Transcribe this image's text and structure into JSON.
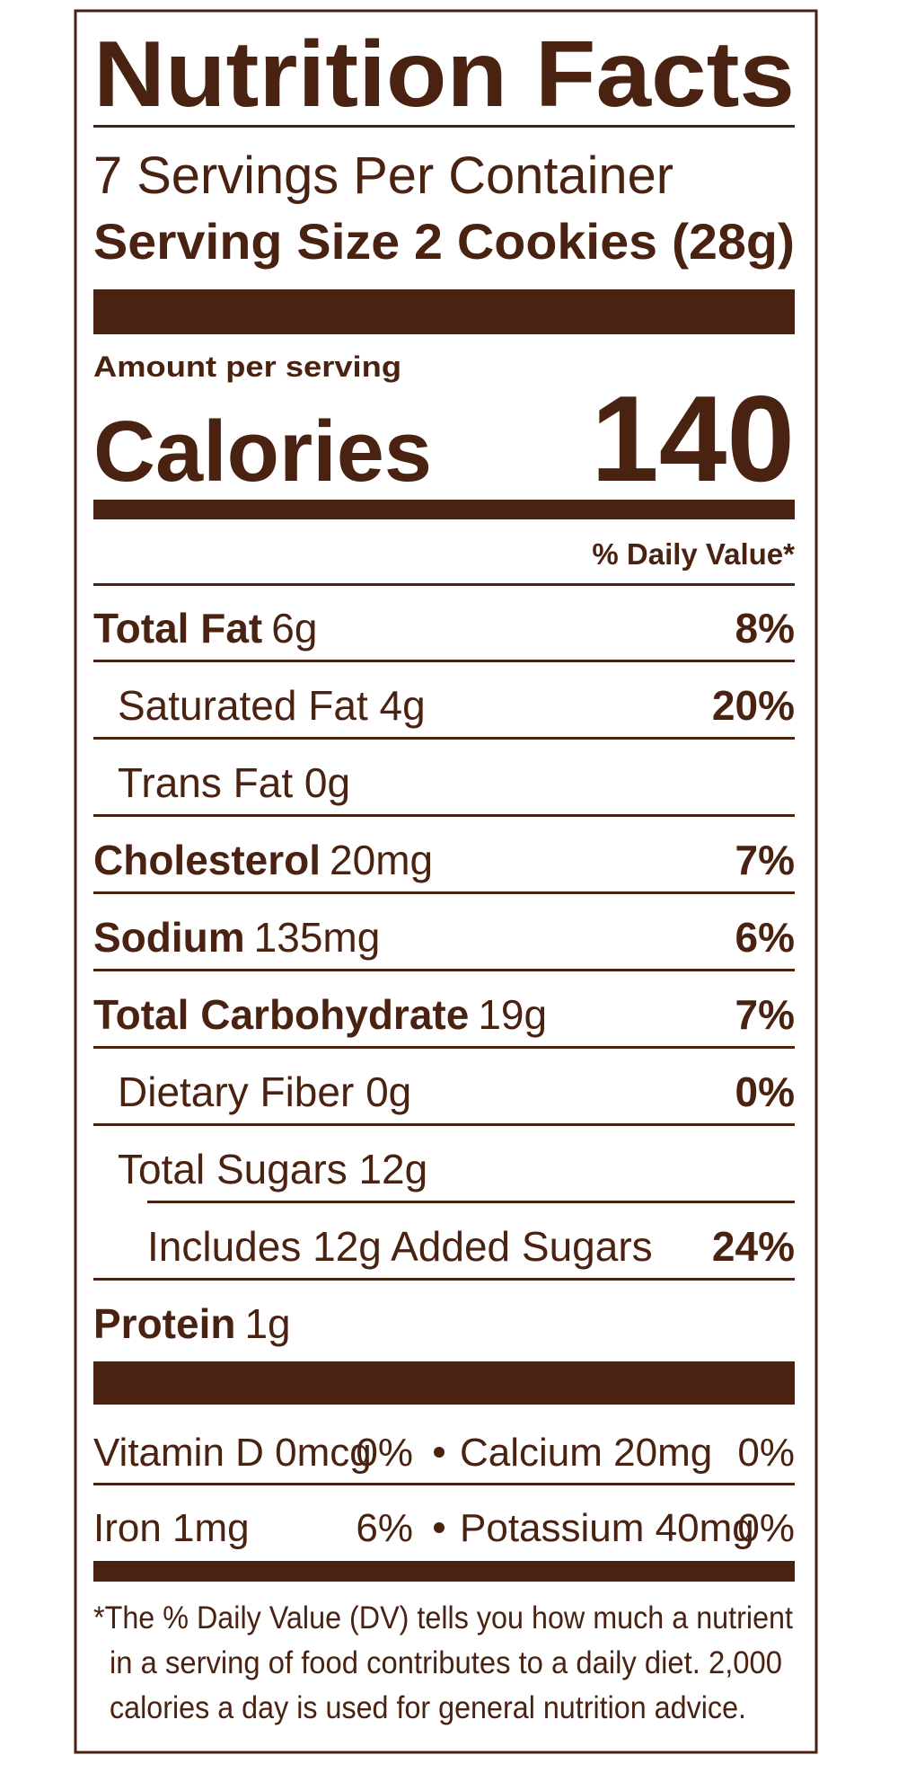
{
  "title": "Nutrition Facts",
  "servings": "7 Servings Per Container",
  "serving_size": "Serving Size 2 Cookies (28g)",
  "amount_per_serving": "Amount per serving",
  "calories": {
    "label": "Calories",
    "value": "140"
  },
  "dv_header": "% Daily Value*",
  "rows": [
    {
      "name": "Total Fat",
      "amount": "6g",
      "dv": "8%"
    },
    {
      "label": "Saturated Fat 4g",
      "dv": "20%"
    },
    {
      "label": "Trans Fat 0g"
    },
    {
      "name": "Cholesterol",
      "amount": "20mg",
      "dv": "7%"
    },
    {
      "name": "Sodium",
      "amount": "135mg",
      "dv": "6%"
    },
    {
      "name": "Total Carbohydrate",
      "amount": "19g",
      "dv": "7%"
    },
    {
      "label": "Dietary Fiber 0g",
      "dv": "0%"
    },
    {
      "label": "Total Sugars 12g"
    },
    {
      "label": "Includes 12g Added Sugars",
      "dv": "24%"
    },
    {
      "name": "Protein",
      "amount": "1g"
    }
  ],
  "vitamins": [
    [
      {
        "label": "Vitamin D 0mcg",
        "dv": "0%"
      },
      {
        "label": "Calcium 20mg",
        "dv": "0%"
      }
    ],
    [
      {
        "label": "Iron 1mg",
        "dv": "6%"
      },
      {
        "label": "Potassium 40mg",
        "dv": "0%"
      }
    ]
  ],
  "footnote": [
    "*The % Daily Value (DV) tells you how much a nutrient",
    "in a serving of food contributes to a daily diet. 2,000",
    "calories a day is used for general nutrition advice."
  ]
}
